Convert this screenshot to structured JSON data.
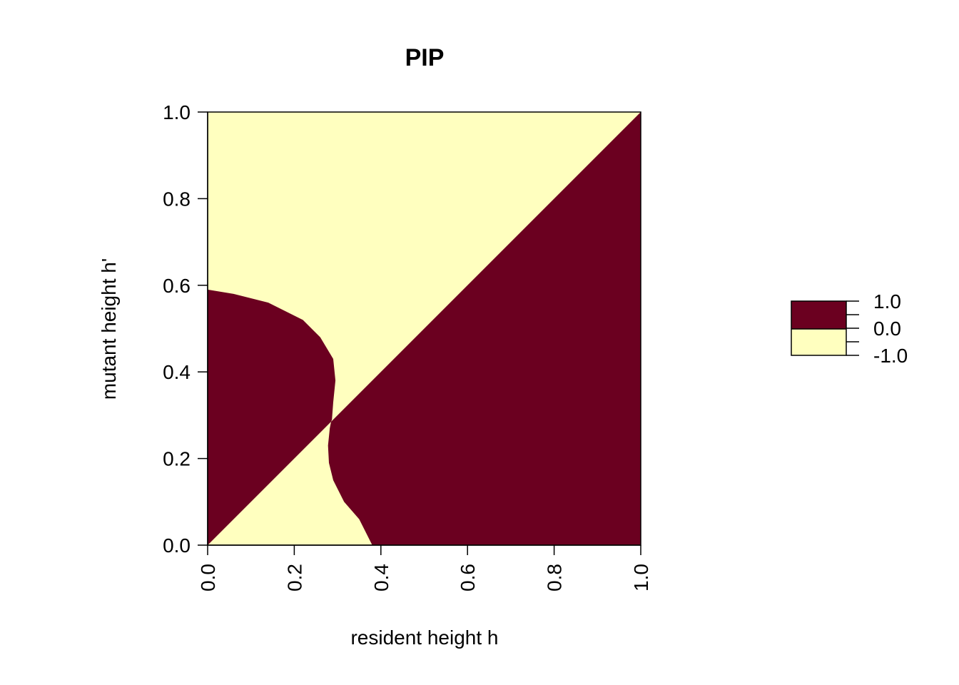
{
  "chart_data": {
    "type": "heatmap",
    "title": "PIP",
    "xlabel": "resident height h",
    "ylabel": "mutant height h'",
    "xlim": [
      0,
      1
    ],
    "ylim": [
      0,
      1
    ],
    "x_ticks": [
      "0.0",
      "0.2",
      "0.4",
      "0.6",
      "0.8",
      "1.0"
    ],
    "y_ticks": [
      "0.0",
      "0.2",
      "0.4",
      "0.6",
      "0.8",
      "1.0"
    ],
    "grid": false,
    "colors": {
      "positive": "#6b0020",
      "negative": "#ffffbf"
    },
    "legend": {
      "placement": "right",
      "labels": [
        "1.0",
        "0.0",
        "-1.0"
      ],
      "values": [
        1.0,
        0.0,
        -1.0
      ]
    },
    "regions": [
      {
        "value": 1,
        "polygon": [
          [
            0,
            0
          ],
          [
            0,
            0.59
          ],
          [
            0.06,
            0.58
          ],
          [
            0.14,
            0.56
          ],
          [
            0.22,
            0.52
          ],
          [
            0.26,
            0.48
          ],
          [
            0.29,
            0.43
          ],
          [
            0.295,
            0.38
          ],
          [
            0.29,
            0.33
          ],
          [
            0.287,
            0.29
          ],
          [
            0.285,
            0.285
          ],
          [
            0,
            0
          ]
        ]
      },
      {
        "value": 1,
        "polygon": [
          [
            1,
            1
          ],
          [
            1,
            0
          ],
          [
            0.38,
            0
          ],
          [
            0.35,
            0.06
          ],
          [
            0.315,
            0.1
          ],
          [
            0.29,
            0.15
          ],
          [
            0.28,
            0.19
          ],
          [
            0.278,
            0.23
          ],
          [
            0.282,
            0.27
          ],
          [
            0.285,
            0.285
          ],
          [
            1,
            1
          ]
        ]
      }
    ]
  }
}
